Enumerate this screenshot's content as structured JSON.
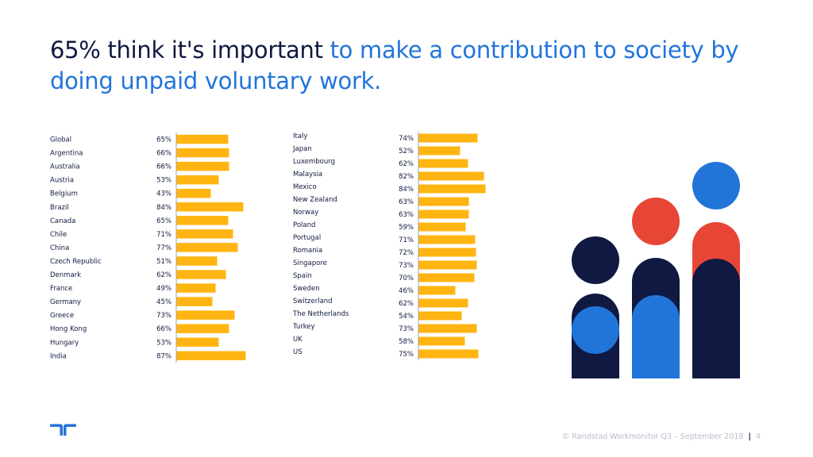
{
  "title": {
    "dark": "65% think it's important",
    "blue": "to make a contribution to society by doing unpaid voluntary work."
  },
  "chart_data": [
    {
      "type": "bar",
      "orientation": "horizontal",
      "title": "",
      "xlim": [
        0,
        100
      ],
      "categories": [
        "Global",
        "Argentina",
        "Australia",
        "Austria",
        "Belgium",
        "Brazil",
        "Canada",
        "Chile",
        "China",
        "Czech Republic",
        "Denmark",
        "France",
        "Germany",
        "Greece",
        "Hong Kong",
        "Hungary",
        "India"
      ],
      "values": [
        65,
        66,
        66,
        53,
        43,
        84,
        65,
        71,
        77,
        51,
        62,
        49,
        45,
        73,
        66,
        53,
        87
      ],
      "value_labels": [
        "65%",
        "66%",
        "66%",
        "53%",
        "43%",
        "84%",
        "65%",
        "71%",
        "77%",
        "51%",
        "62%",
        "49%",
        "45%",
        "73%",
        "66%",
        "53%",
        "87%"
      ]
    },
    {
      "type": "bar",
      "orientation": "horizontal",
      "title": "",
      "xlim": [
        0,
        100
      ],
      "categories": [
        "Italy",
        "Japan",
        "Luxembourg",
        "Malaysia",
        "Mexico",
        "New Zealand",
        "Norway",
        "Poland",
        "Portugal",
        "Romania",
        "Singapore",
        "Spain",
        "Sweden",
        "Switzerland",
        "The Netherlands",
        "Turkey",
        "UK",
        "US"
      ],
      "values": [
        74,
        52,
        62,
        82,
        84,
        63,
        63,
        59,
        71,
        72,
        73,
        70,
        46,
        62,
        54,
        73,
        58,
        75
      ],
      "value_labels": [
        "74%",
        "52%",
        "62%",
        "82%",
        "84%",
        "63%",
        "63%",
        "59%",
        "71%",
        "72%",
        "73%",
        "70%",
        "46%",
        "62%",
        "54%",
        "73%",
        "58%",
        "75%"
      ]
    }
  ],
  "colors": {
    "bar": "#ffb511",
    "axis": "#8a8fa0",
    "navy": "#0f1941",
    "blue": "#2175d9",
    "red": "#e74536"
  },
  "footer": {
    "text": "© Randstad Workmonitor Q3 – September 2018",
    "page": "4"
  },
  "illustration": {
    "icon": "people-figures-icon"
  },
  "logo": {
    "icon": "randstad-logo-icon"
  }
}
